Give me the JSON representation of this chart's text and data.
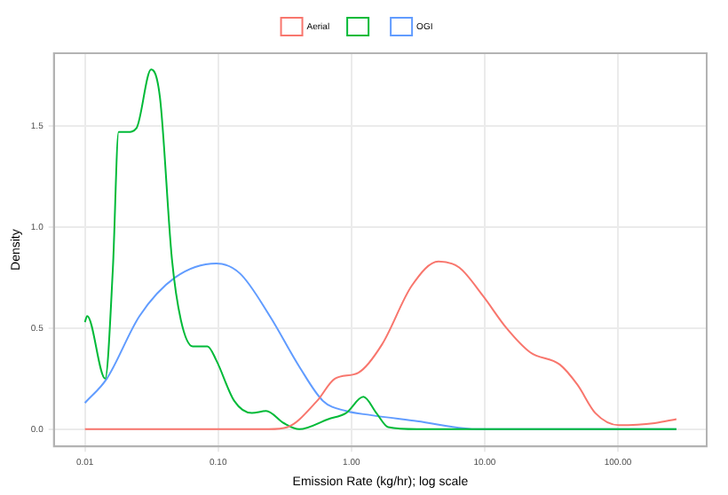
{
  "chart_data": {
    "type": "line",
    "xlabel": "Emission Rate (kg/hr); log scale",
    "ylabel": "Density",
    "log": "x",
    "grid": true,
    "legend": "top",
    "xlim": [
      0.00585,
      464
    ],
    "xticks": [
      0.01,
      {
        "value": 0.1,
        "label": "0.10"
      },
      {
        "value": 1,
        "label": "1.00"
      },
      {
        "value": 10,
        "label": "10.00"
      },
      {
        "value": 100,
        "label": "100.00"
      }
    ],
    "ylim": [
      -0.085,
      1.86
    ],
    "yticks": [
      {
        "value": 0,
        "label": "0.0"
      },
      0.5,
      {
        "value": 1,
        "label": "1.0"
      },
      1.5
    ],
    "series": [
      {
        "name": "Aerial",
        "color": "#f8766d",
        "x": [
          0.01,
          0.24,
          0.331,
          0.553,
          0.752,
          1.13,
          1.7,
          2.84,
          4.5,
          6.44,
          9.7,
          14.6,
          22,
          36.6,
          49.7,
          67.7,
          102,
          189,
          275
        ],
        "values": [
          0,
          0,
          0.01,
          0.14,
          0.25,
          0.28,
          0.42,
          0.71,
          0.83,
          0.8,
          0.66,
          0.5,
          0.38,
          0.32,
          0.22,
          0.08,
          0.02,
          0.03,
          0.05
        ]
      },
      {
        "color": "#00ba38",
        "x": [
          0.01,
          0.0104,
          0.0142,
          0.0162,
          0.0179,
          0.0209,
          0.0244,
          0.0314,
          0.0366,
          0.045,
          0.0525,
          0.0644,
          0.0832,
          0.097,
          0.132,
          0.179,
          0.229,
          0.311,
          0.406,
          0.671,
          0.912,
          1.23,
          1.54,
          1.89,
          3.11,
          275
        ],
        "values": [
          0.53,
          0.56,
          0.25,
          0.79,
          1.47,
          1.47,
          1.49,
          1.78,
          1.64,
          0.84,
          0.54,
          0.41,
          0.41,
          0.34,
          0.14,
          0.08,
          0.09,
          0.03,
          0,
          0.05,
          0.08,
          0.16,
          0.08,
          0.01,
          0,
          0
        ]
      },
      {
        "name": "OGI",
        "color": "#619cff",
        "x": [
          0.01,
          0.0146,
          0.0257,
          0.0474,
          0.097,
          0.146,
          0.244,
          0.406,
          0.612,
          0.912,
          1.39,
          3.11,
          8.77,
          275
        ],
        "values": [
          0.13,
          0.25,
          0.56,
          0.75,
          0.82,
          0.77,
          0.56,
          0.31,
          0.14,
          0.09,
          0.07,
          0.04,
          0,
          0
        ]
      }
    ]
  }
}
